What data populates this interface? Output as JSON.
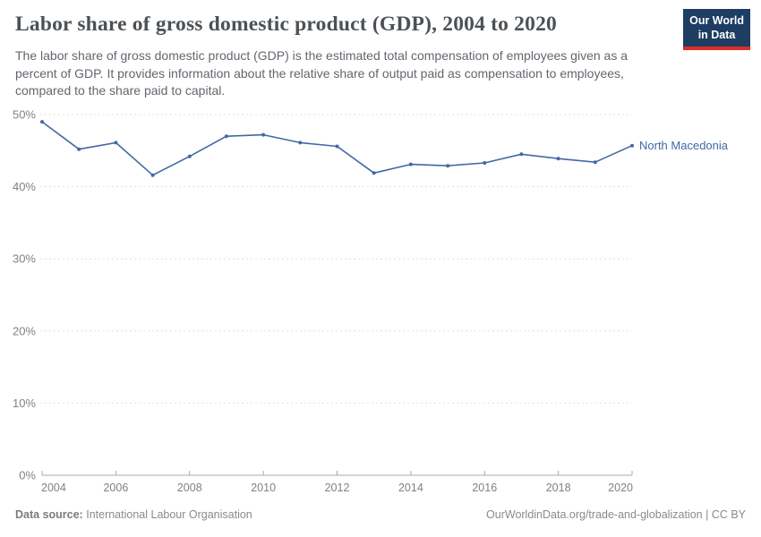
{
  "header": {
    "title": "Labor share of gross domestic product (GDP), 2004 to 2020",
    "subtitle": "The labor share of gross domestic product (GDP) is the estimated total compensation of employees given as a percent of GDP. It provides information about the relative share of output paid as compensation to employees, compared to the share paid to capital.",
    "logo": {
      "line1": "Our World",
      "line2": "in Data",
      "bg_color": "#1d3d63",
      "accent_color": "#dc2f27"
    }
  },
  "chart_data": {
    "type": "line",
    "title": "Labor share of gross domestic product (GDP), 2004 to 2020",
    "xlabel": "",
    "ylabel": "",
    "xlim": [
      2004,
      2020
    ],
    "ylim": [
      0,
      50
    ],
    "xticks": [
      2004,
      2006,
      2008,
      2010,
      2012,
      2014,
      2016,
      2018,
      2020
    ],
    "yticks": [
      0,
      10,
      20,
      30,
      40,
      50
    ],
    "y_tick_suffix": "%",
    "grid": "horizontal-dashed",
    "legend_position": "end-of-line-label",
    "x": [
      2004,
      2005,
      2006,
      2007,
      2008,
      2009,
      2010,
      2011,
      2012,
      2013,
      2014,
      2015,
      2016,
      2017,
      2018,
      2019,
      2020
    ],
    "series": [
      {
        "name": "North Macedonia",
        "color": "#4268a5",
        "values": [
          49.0,
          45.2,
          46.1,
          41.6,
          44.2,
          47.0,
          47.2,
          46.1,
          45.6,
          41.9,
          43.1,
          42.9,
          43.3,
          44.5,
          43.9,
          43.4,
          45.7
        ]
      }
    ]
  },
  "axis_colors": {
    "gridline": "#e0e0e0",
    "axis_line": "#a8a8a8",
    "tick_label": "#818181"
  },
  "footer": {
    "datasource_label": "Data source:",
    "datasource_value": "International Labour Organisation",
    "rights": "OurWorldinData.org/trade-and-globalization | CC BY"
  }
}
